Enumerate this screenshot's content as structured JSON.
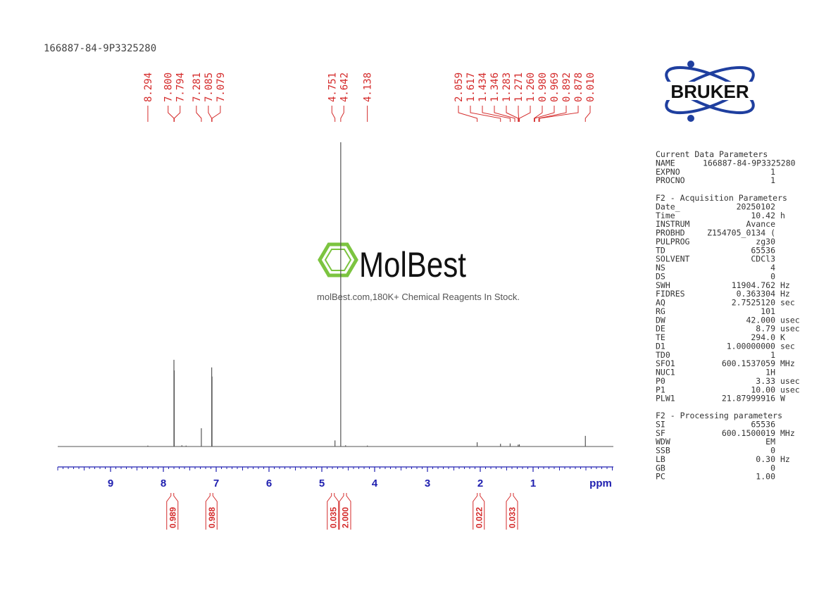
{
  "header": {
    "sample_id": "166887-84-9P3325280"
  },
  "logo": {
    "text": "BRUKER"
  },
  "watermark": {
    "brand": "MolBest",
    "tagline": "molBest.com,180K+ Chemical Reagents In Stock."
  },
  "chart_data": {
    "type": "line",
    "x_label": "ppm",
    "xlim": [
      10,
      -0.52
    ],
    "xticks": [
      9,
      8,
      7,
      6,
      5,
      4,
      3,
      2,
      1
    ],
    "ylim": [
      0,
      100
    ],
    "color": "#555555",
    "axis_color": "#2020b0",
    "label_color": "#d42a2a",
    "peaks": {
      "x": [
        8.294,
        7.8,
        7.794,
        7.65,
        7.57,
        7.281,
        7.085,
        7.079,
        4.751,
        4.642,
        4.55,
        4.138,
        2.059,
        1.617,
        1.434,
        1.283,
        1.26,
        0.01
      ],
      "values": [
        0.3,
        28.5,
        25,
        0.4,
        0.3,
        6,
        26,
        23,
        2,
        100,
        0.4,
        0.3,
        1.4,
        0.9,
        1,
        0.6,
        0.7,
        3.5
      ]
    },
    "peak_labels": {
      "values": [
        8.294,
        7.8,
        7.794,
        7.281,
        7.085,
        7.079,
        4.751,
        4.642,
        4.138,
        2.059,
        1.617,
        1.434,
        1.346,
        1.283,
        1.271,
        1.26,
        0.98,
        0.969,
        0.892,
        0.878,
        0.01
      ],
      "value_labels": [
        "8.294",
        "7.800",
        "7.794",
        "7.281",
        "7.085",
        "7.079",
        "4.751",
        "4.642",
        "4.138",
        "2.059",
        "1.617",
        "1.434",
        "1.346",
        "1.283",
        "1.271",
        "1.260",
        "0.980",
        "0.969",
        "0.892",
        "0.878",
        "0.010"
      ]
    },
    "integrals": {
      "x": [
        7.83,
        7.09,
        4.79,
        4.56,
        2.03,
        1.4
      ],
      "values": [
        0.989,
        0.988,
        0.035,
        2,
        0.022,
        0.033
      ],
      "value_labels": [
        "0.989",
        "0.988",
        "0.035",
        "2.000",
        "0.022",
        "0.033"
      ]
    }
  },
  "parameters": [
    {
      "title": "Current Data Parameters",
      "rows": [
        [
          "NAME",
          "166887-84-9P3325280"
        ],
        [
          "EXPNO",
          "1"
        ],
        [
          "PROCNO",
          "1"
        ]
      ]
    },
    {
      "title": "F2 - Acquisition Parameters",
      "rows": [
        [
          "Date_",
          "20250102"
        ],
        [
          "Time",
          "10.42",
          "h"
        ],
        [
          "INSTRUM",
          "Avance"
        ],
        [
          "PROBHD",
          "Z154705_0134 ("
        ],
        [
          "PULPROG",
          "zg30"
        ],
        [
          "TD",
          "65536"
        ],
        [
          "SOLVENT",
          "CDCl3"
        ],
        [
          "NS",
          "4"
        ],
        [
          "DS",
          "0"
        ],
        [
          "SWH",
          "11904.762",
          "Hz"
        ],
        [
          "FIDRES",
          "0.363304",
          "Hz"
        ],
        [
          "AQ",
          "2.7525120",
          "sec"
        ],
        [
          "RG",
          "101"
        ],
        [
          "DW",
          "42.000",
          "usec"
        ],
        [
          "DE",
          "8.79",
          "usec"
        ],
        [
          "TE",
          "294.0",
          "K"
        ],
        [
          "D1",
          "1.00000000",
          "sec"
        ],
        [
          "TD0",
          "1"
        ],
        [
          "SFO1",
          "600.1537059",
          "MHz"
        ],
        [
          "NUC1",
          "1H"
        ],
        [
          "P0",
          "3.33",
          "usec"
        ],
        [
          "P1",
          "10.00",
          "usec"
        ],
        [
          "PLW1",
          "21.87999916",
          "W"
        ]
      ]
    },
    {
      "title": "F2 - Processing parameters",
      "rows": [
        [
          "SI",
          "65536"
        ],
        [
          "SF",
          "600.1500019",
          "MHz"
        ],
        [
          "WDW",
          "EM"
        ],
        [
          "SSB",
          "0"
        ],
        [
          "LB",
          "0.30",
          "Hz"
        ],
        [
          "GB",
          "0"
        ],
        [
          "PC",
          "1.00"
        ]
      ]
    }
  ]
}
